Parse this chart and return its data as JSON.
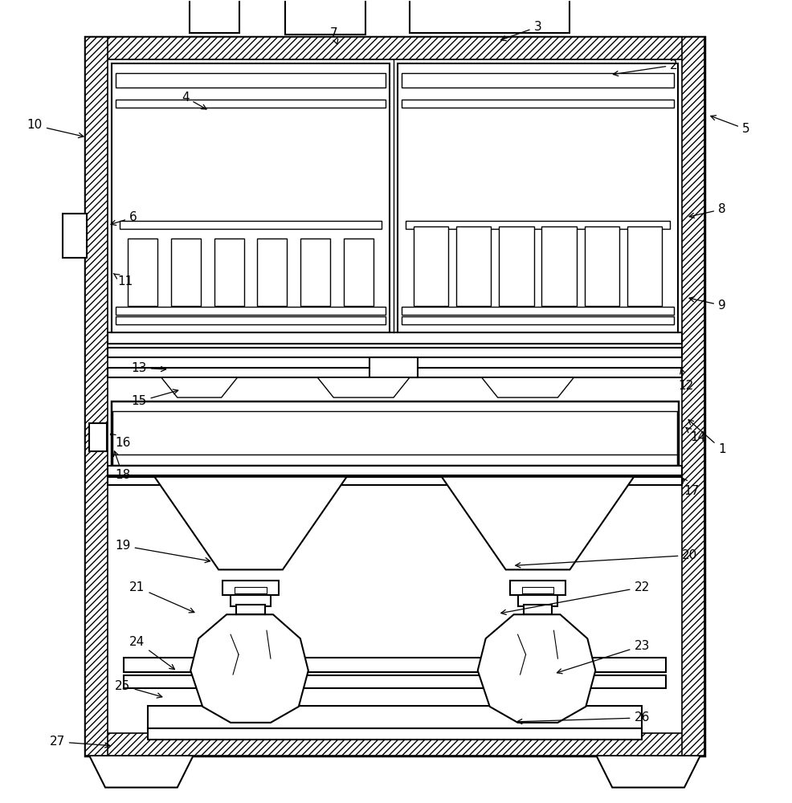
{
  "bg_color": "#ffffff",
  "line_color": "#000000",
  "fig_width": 9.87,
  "fig_height": 10.0
}
